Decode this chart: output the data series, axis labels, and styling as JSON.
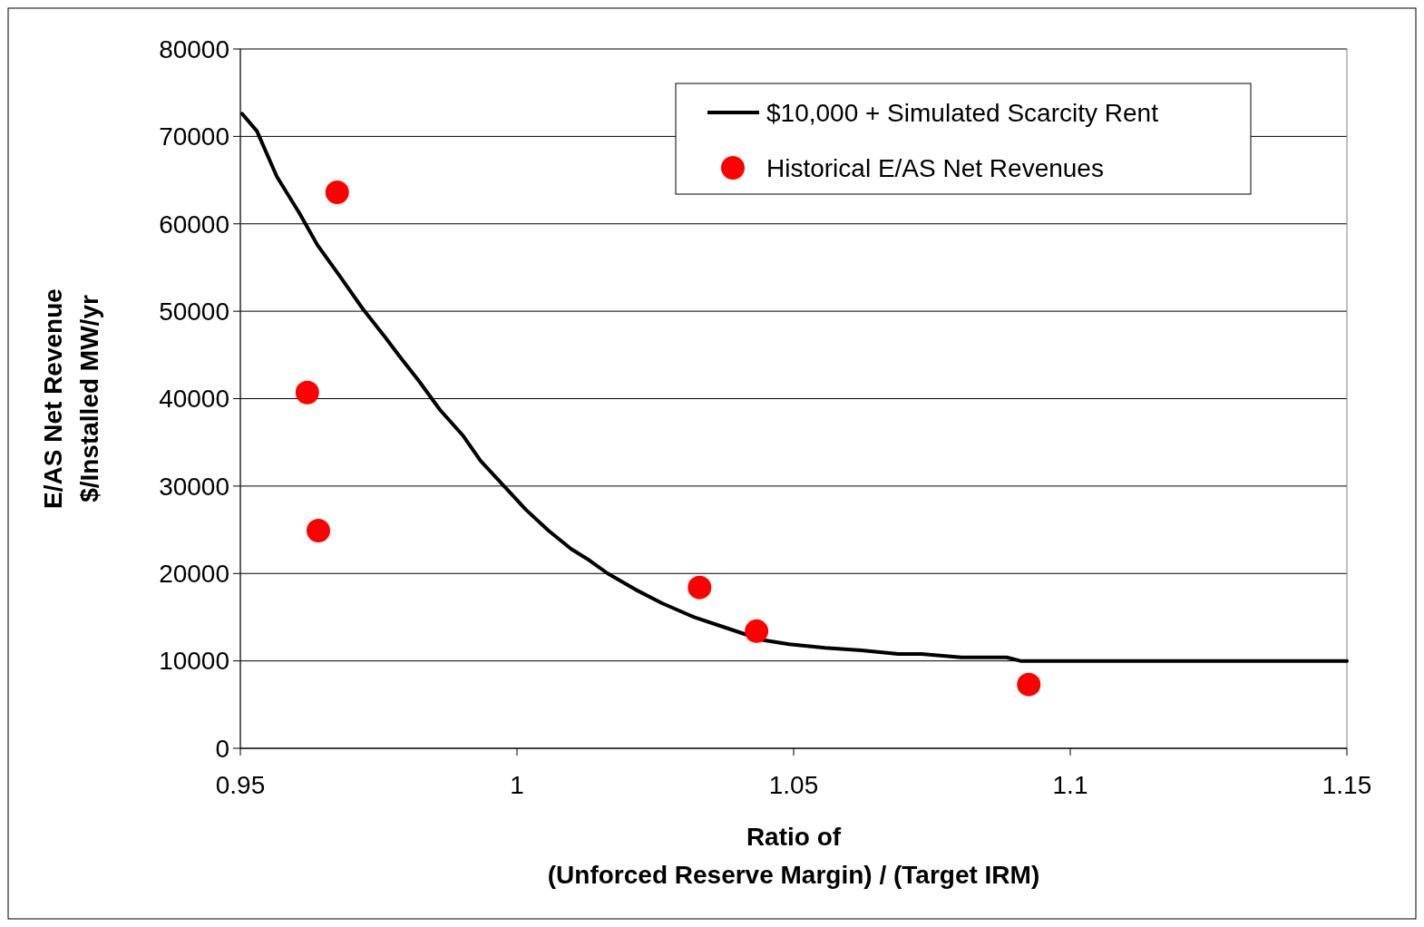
{
  "chart_data": {
    "type": "line",
    "xlabel": "Ratio of\n(Unforced Reserve Margin) / (Target IRM)",
    "ylabel": "E/AS Net Revenue\n$/Installed MW/yr",
    "xlim": [
      0.95,
      1.15
    ],
    "xticks": [
      0.95,
      1,
      1.05,
      1.1,
      1.15
    ],
    "ylim": [
      0,
      80000
    ],
    "yticks": [
      0,
      10000,
      20000,
      30000,
      40000,
      50000,
      60000,
      70000,
      80000
    ],
    "grid": "y",
    "legend": "top right",
    "series": [
      {
        "name": "$10,000 + Simulated Scarcity Rent",
        "color": "#000000",
        "x": [
          0.9503,
          0.953,
          0.9566,
          0.9607,
          0.9639,
          0.968,
          0.9721,
          0.9762,
          0.9787,
          0.9823,
          0.9861,
          0.9902,
          0.9934,
          0.9975,
          1.0016,
          1.0057,
          1.0098,
          1.0131,
          1.0164,
          1.0213,
          1.0262,
          1.032,
          1.0377,
          1.0443,
          1.0492,
          1.0557,
          1.0623,
          1.0689,
          1.073,
          1.0803,
          1.0885,
          1.091,
          1.15
        ],
        "values": [
          72600,
          70600,
          65400,
          61200,
          57600,
          54000,
          50300,
          47000,
          44900,
          42000,
          38700,
          35800,
          32900,
          30100,
          27300,
          24900,
          22800,
          21500,
          20000,
          18200,
          16600,
          15000,
          13800,
          12400,
          11900,
          11500,
          11200,
          10800,
          10800,
          10400,
          10400,
          10000,
          10000
        ]
      },
      {
        "name": "Historical E/AS Net Revenues",
        "type": "scatter",
        "color": "#ff0000",
        "marker": "circle",
        "x": [
          0.9675,
          0.9621,
          0.9641,
          1.033,
          1.0433,
          1.0925
        ],
        "values": [
          63600,
          40700,
          24900,
          18400,
          13400,
          7300
        ]
      }
    ]
  }
}
